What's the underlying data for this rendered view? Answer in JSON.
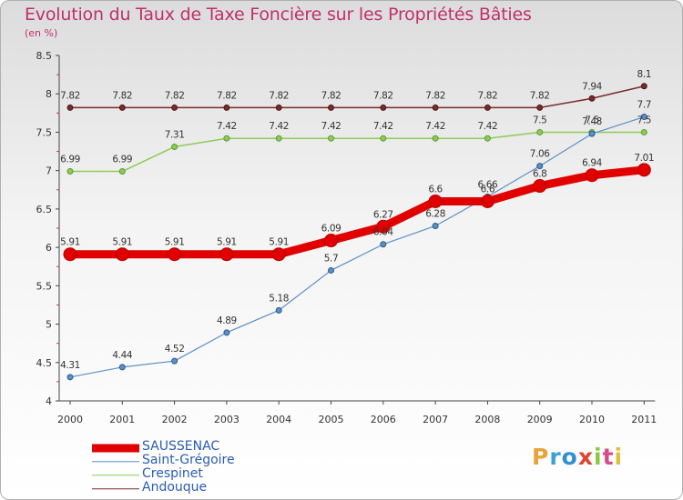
{
  "header": {
    "title": "Evolution du Taux de Taxe Foncière sur les Propriétés Bâties",
    "subtitle": "(en %)"
  },
  "logo": {
    "text": "Proxiti",
    "colors": [
      "#e8a33b",
      "#3aa0d8",
      "#2f8fd0",
      "#e0442f",
      "#8cc83f",
      "#d94a8c",
      "#e0c03a"
    ]
  },
  "chart_data": {
    "type": "line",
    "title": "Evolution du Taux de Taxe Foncière sur les Propriétés Bâties",
    "ylabel": "(en %)",
    "xlabel": "",
    "ylim": [
      4,
      8.5
    ],
    "yticks": [
      "4",
      "4.5",
      "5",
      "5.5",
      "6",
      "6.5",
      "7",
      "7.5",
      "8",
      "8.5"
    ],
    "categories": [
      "2000",
      "2001",
      "2002",
      "2003",
      "2004",
      "2005",
      "2006",
      "2007",
      "2008",
      "2009",
      "2010",
      "2011"
    ],
    "grid": false,
    "legend_position": "bottom-left",
    "series": [
      {
        "name": "Andouque",
        "color": "#7a2a2a",
        "values": [
          7.82,
          7.82,
          7.82,
          7.82,
          7.82,
          7.82,
          7.82,
          7.82,
          7.82,
          7.82,
          7.94,
          8.1
        ],
        "labels": [
          "7.82",
          "7.82",
          "7.82",
          "7.82",
          "7.82",
          "7.82",
          "7.82",
          "7.82",
          "7.82",
          "7.82",
          "7.94",
          "8.1"
        ]
      },
      {
        "name": "Crespinet",
        "color": "#8ccc55",
        "values": [
          6.99,
          6.99,
          7.31,
          7.42,
          7.42,
          7.42,
          7.42,
          7.42,
          7.42,
          7.5,
          7.5,
          7.5
        ],
        "labels": [
          "6.99",
          "6.99",
          "7.31",
          "7.42",
          "7.42",
          "7.42",
          "7.42",
          "7.42",
          "7.42",
          "7.5",
          "7.5",
          "7.5"
        ]
      },
      {
        "name": "Saint-Grégoire",
        "color": "#5a8fc8",
        "values": [
          4.31,
          4.44,
          4.52,
          4.89,
          5.18,
          5.7,
          6.04,
          6.28,
          6.66,
          7.06,
          7.48,
          7.7
        ],
        "labels": [
          "4.31",
          "4.44",
          "4.52",
          "4.89",
          "5.18",
          "5.7",
          "6.04",
          "6.28",
          "6.66",
          "7.06",
          "7.48",
          "7.7"
        ]
      },
      {
        "name": "SAUSSENAC",
        "color": "#e00000",
        "values": [
          5.91,
          5.91,
          5.91,
          5.91,
          5.91,
          6.09,
          6.27,
          6.6,
          6.6,
          6.8,
          6.94,
          7.01
        ],
        "labels": [
          "5.91",
          "5.91",
          "5.91",
          "5.91",
          "5.91",
          "6.09",
          "6.27",
          "6.6",
          "6.6",
          "6.8",
          "6.94",
          "7.01"
        ]
      }
    ],
    "legend": [
      "SAUSSENAC",
      "Saint-Grégoire",
      "Crespinet",
      "Andouque"
    ]
  }
}
